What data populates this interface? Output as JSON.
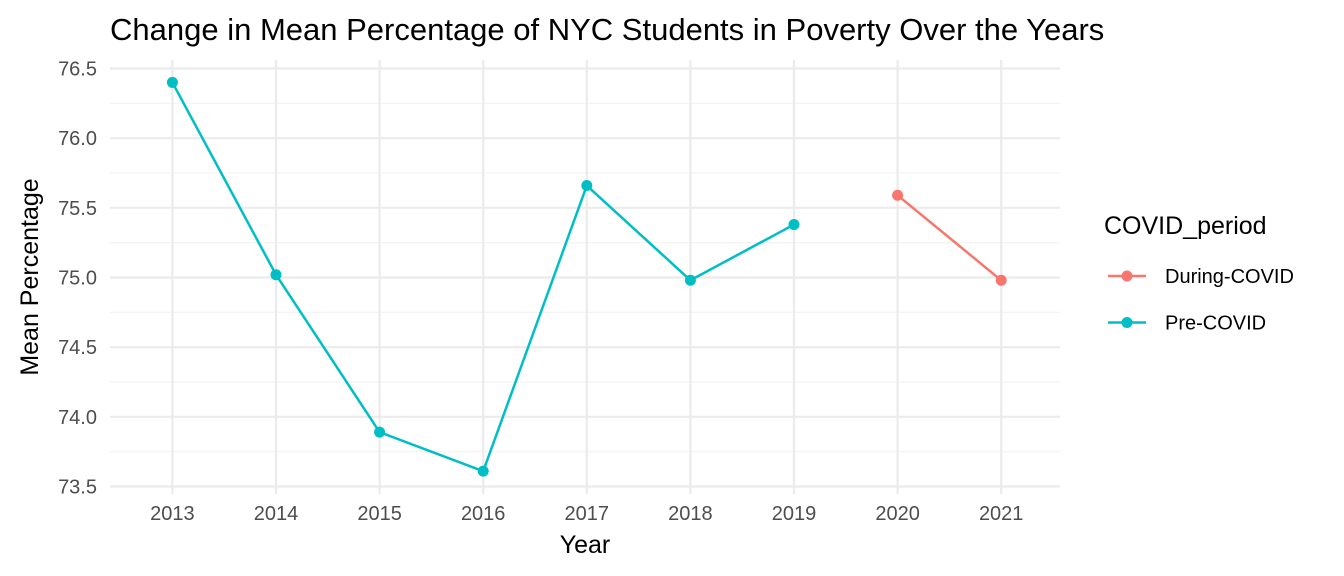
{
  "chart_data": {
    "type": "line",
    "title": "Change in Mean Percentage of NYC Students in Poverty Over the Years",
    "xlabel": "Year",
    "ylabel": "Mean Percentage",
    "categories": [
      "2013",
      "2014",
      "2015",
      "2016",
      "2017",
      "2018",
      "2019",
      "2020",
      "2021"
    ],
    "ylim": [
      73.5,
      76.5
    ],
    "yticks": [
      "73.5",
      "74.0",
      "74.5",
      "75.0",
      "75.5",
      "76.0",
      "76.5"
    ],
    "grid": true,
    "legend": {
      "title": "COVID_period",
      "position": "right"
    },
    "series": [
      {
        "name": "During-COVID",
        "color": "#f8766d",
        "x": [
          "2020",
          "2021"
        ],
        "values": [
          75.59,
          74.98
        ]
      },
      {
        "name": "Pre-COVID",
        "color": "#00bfc4",
        "x": [
          "2013",
          "2014",
          "2015",
          "2016",
          "2017",
          "2018",
          "2019"
        ],
        "values": [
          76.4,
          75.02,
          73.89,
          73.61,
          75.66,
          74.98,
          75.38
        ]
      }
    ]
  }
}
